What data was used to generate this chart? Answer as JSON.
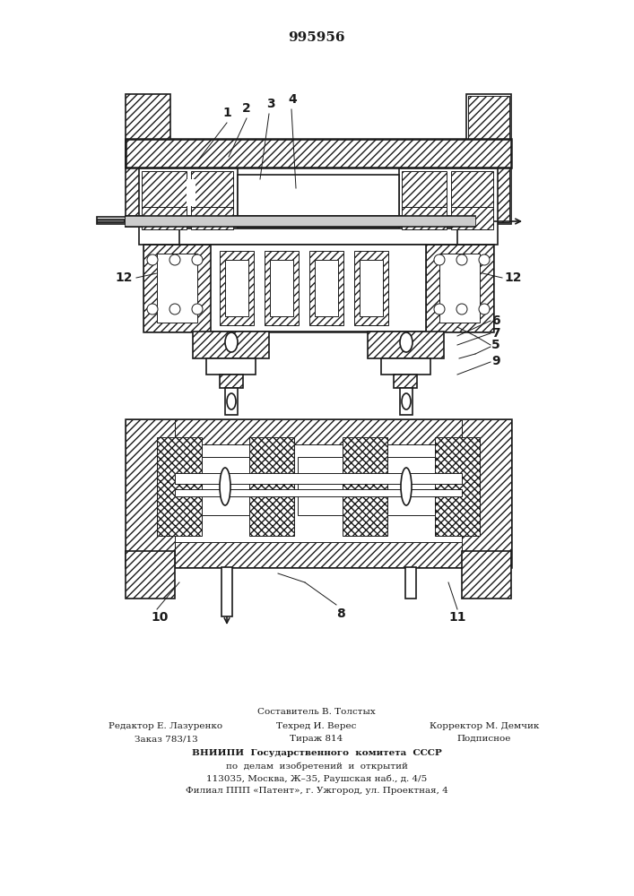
{
  "patent_number": "995956",
  "bg": "#ffffff",
  "dc": "#1a1a1a",
  "footer": {
    "composer": "Составитель В. Толстых",
    "editor": "Редактор Е. Лазуренко",
    "tech": "Техред И. Верес",
    "corrector": "Корректор М. Демчик",
    "order": "Заказ 783/13",
    "tirazh": "Тираж 814",
    "podpisnoe": "Подписное",
    "vniip1": "ВНИИПИ  Государственного  комитета  СССР",
    "vniip2": "по  делам  изобретений  и  открытий",
    "address1": "113035, Москва, Ж–35, Раушская наб., д. 4/5",
    "address2": "Филиал ППП «Патент», г. Ужгород, ул. Проектная, 4"
  }
}
